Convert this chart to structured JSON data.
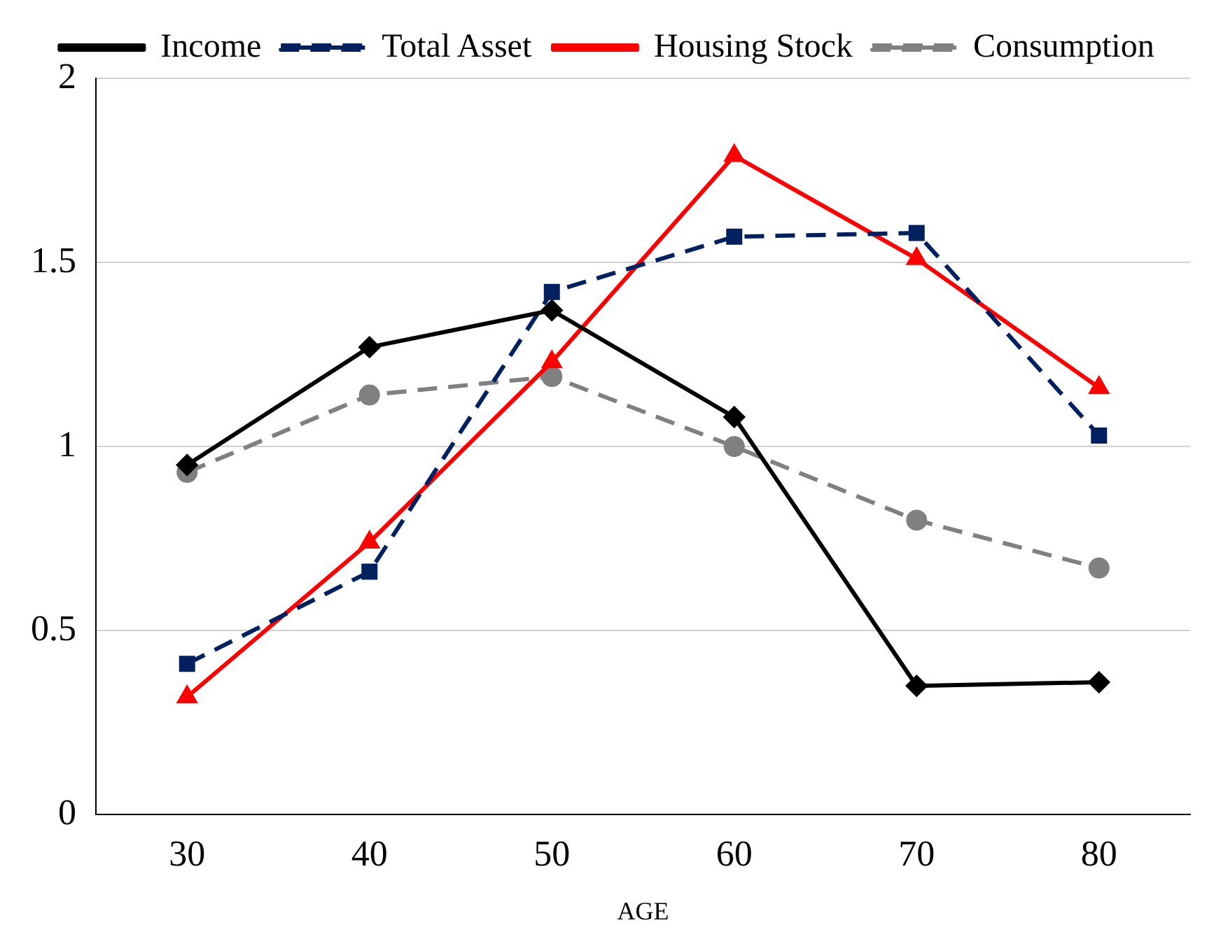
{
  "chart_data": {
    "type": "line",
    "xlabel": "AGE",
    "categories": [
      "30",
      "40",
      "50",
      "60",
      "70",
      "80"
    ],
    "series": [
      {
        "name": "Income",
        "color": "#000000",
        "marker": "diamond",
        "line_style": "solid",
        "values": [
          0.95,
          1.27,
          1.37,
          1.08,
          0.35,
          0.36
        ]
      },
      {
        "name": "Total Asset",
        "color": "#002060",
        "marker": "square",
        "line_style": "dashed",
        "values": [
          0.41,
          0.66,
          1.42,
          1.57,
          1.58,
          1.03
        ]
      },
      {
        "name": "Housing Stock",
        "color": "#ff0000",
        "marker": "triangle",
        "line_style": "solid",
        "values": [
          0.32,
          0.74,
          1.23,
          1.79,
          1.51,
          1.16
        ]
      },
      {
        "name": "Consumption",
        "color": "#808080",
        "marker": "circle",
        "line_style": "dashed",
        "values": [
          0.93,
          1.14,
          1.19,
          1.0,
          0.8,
          0.67
        ]
      }
    ],
    "ylim": [
      0,
      2
    ],
    "yticks": [
      0,
      0.5,
      1,
      1.5,
      2
    ],
    "grid": "y",
    "legend": "top"
  }
}
